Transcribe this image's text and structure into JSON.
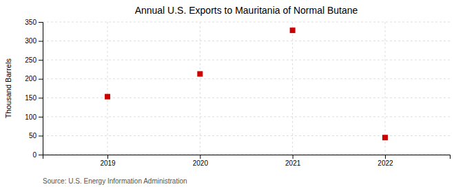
{
  "chart_data": {
    "type": "scatter",
    "title": "Annual U.S. Exports to Mauritania of Normal Butane",
    "ylabel": "Thousand Barrels",
    "source": "Source: U.S. Energy Information Administration",
    "x": [
      2019,
      2020,
      2021,
      2022
    ],
    "values": [
      153,
      213,
      328,
      45
    ],
    "color": "#cc0000",
    "marker": "square",
    "xlim": [
      2018.3,
      2022.7
    ],
    "ylim": [
      0,
      350
    ],
    "xticks": [
      2019,
      2020,
      2021,
      2022
    ],
    "yticks": [
      0,
      50,
      100,
      150,
      200,
      250,
      300,
      350
    ],
    "grid": true
  }
}
